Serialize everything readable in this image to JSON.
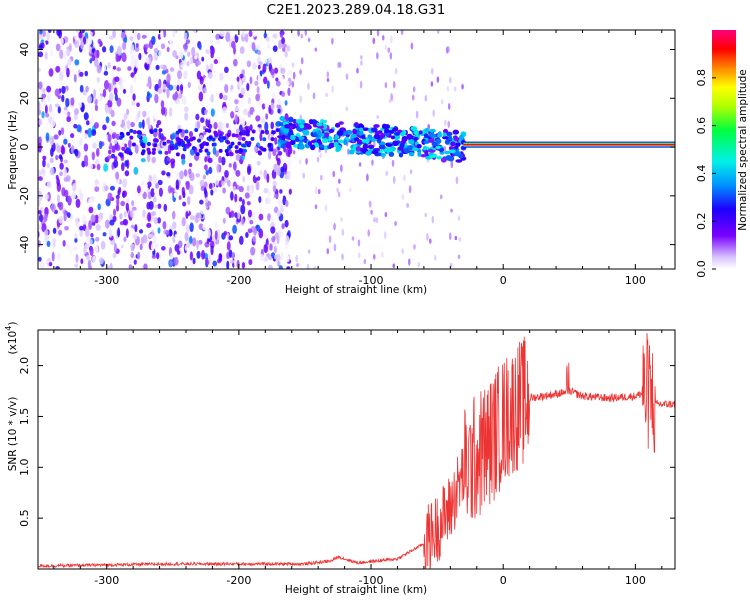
{
  "title": "C2E1.2023.289.04.18.G31",
  "chart_data": [
    {
      "type": "heatmap",
      "xlabel": "Height of straight line (km)",
      "ylabel": "Frequency (Hz)",
      "xlim": [
        -352,
        130
      ],
      "ylim": [
        -50,
        48
      ],
      "xticks": [
        -300,
        -200,
        -100,
        0,
        100
      ],
      "yticks": [
        -40,
        -20,
        0,
        20,
        40
      ],
      "xtick_labels": [
        "-300",
        "-200",
        "-100",
        "0",
        "100"
      ],
      "ytick_labels": [
        "-40",
        "-20",
        "0",
        "20",
        "40"
      ],
      "colorbar": {
        "label": "Normalized spectral amplitude",
        "range": [
          0,
          1
        ],
        "ticks": [
          0.0,
          0.2,
          0.4,
          0.6,
          0.8
        ],
        "tick_labels": [
          "0.0",
          "0.2",
          "0.4",
          "0.6",
          "0.8"
        ]
      },
      "features": {
        "carrier_line": {
          "x_range": [
            -30,
            130
          ],
          "frequency": 1,
          "amplitude": 0.95
        },
        "scintillation_band": {
          "x_range": [
            -170,
            -30
          ],
          "frequency_start": 6,
          "frequency_end": 0,
          "peak_amplitude": 0.35
        },
        "diffuse_region": {
          "x_range": [
            -352,
            -160
          ],
          "frequency_range": [
            -50,
            48
          ],
          "peak_amplitude": 0.3
        }
      }
    },
    {
      "type": "line",
      "xlabel": "Height of straight line (km)",
      "ylabel": "SNR (10 * v/v)",
      "y_scale_label": "(x10",
      "y_scale_exponent": "4",
      "y_scale_suffix": ")",
      "xlim": [
        -352,
        130
      ],
      "ylim": [
        0,
        2.35
      ],
      "xticks": [
        -300,
        -200,
        -100,
        0,
        100
      ],
      "yticks": [
        0.5,
        1.0,
        1.5,
        2.0
      ],
      "xtick_labels": [
        "-300",
        "-200",
        "-100",
        "0",
        "100"
      ],
      "ytick_labels": [
        "0.5",
        "1.0",
        "1.5",
        "2.0"
      ],
      "color": "#ee3333",
      "series": [
        {
          "x": [
            -352,
            -300,
            -250,
            -200,
            -150,
            -130,
            -125,
            -110,
            -80,
            -60,
            -50,
            -40,
            -30,
            -20,
            -10,
            0,
            10,
            20,
            30,
            40,
            50,
            60,
            80,
            100,
            110,
            115,
            130
          ],
          "y": [
            0.03,
            0.04,
            0.05,
            0.05,
            0.05,
            0.08,
            0.12,
            0.06,
            0.1,
            0.25,
            0.4,
            0.6,
            0.95,
            1.1,
            1.25,
            1.45,
            1.6,
            1.68,
            1.7,
            1.72,
            1.75,
            1.7,
            1.68,
            1.7,
            1.75,
            1.62,
            1.62
          ]
        }
      ]
    }
  ]
}
